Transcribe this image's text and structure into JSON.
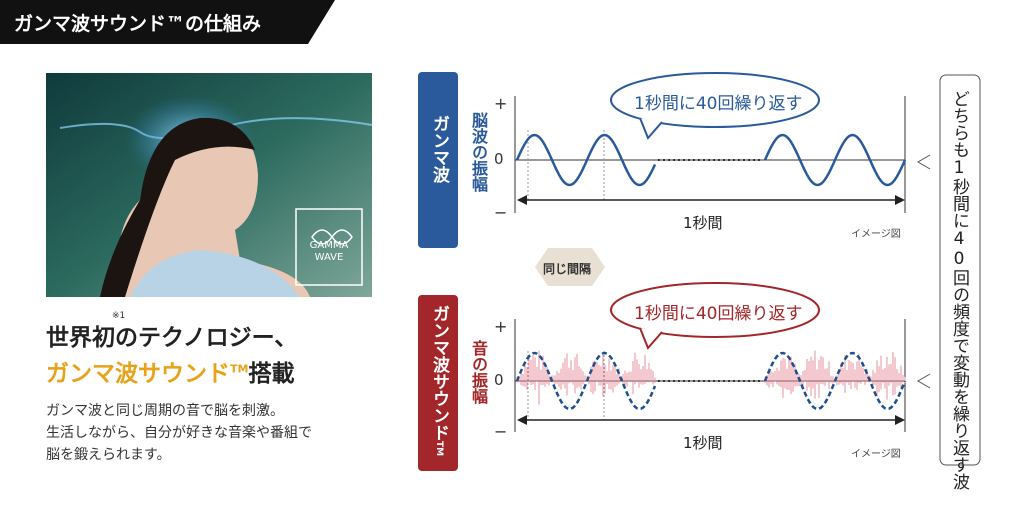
{
  "header": {
    "title": "ガンマ波サウンド™の仕組み"
  },
  "photo": {
    "badge": [
      "GAMMA",
      "WAVE"
    ]
  },
  "left": {
    "note": "※1",
    "heading_line1": "世界初のテクノロジー、",
    "heading_line2": [
      "ガンマ波サウンド",
      "TM",
      "搭載"
    ],
    "body": [
      "ガンマ波と同じ周期の音で脳を刺激。",
      "生活しながら、自分が好きな音楽や番組で",
      "脳を鍛えられます。"
    ]
  },
  "brain_panel": {
    "label": "ガンマ波",
    "axis_title": "脳波の振幅",
    "axis": [
      "+",
      "0",
      "−"
    ],
    "bubble": "1秒間に40回繰り返す",
    "span": "1秒間",
    "note": "イメージ図"
  },
  "interval": "同じ間隔",
  "sound_panel": {
    "label": [
      "ガンマ波サウンド",
      "TM"
    ],
    "axis_title": "音の振幅",
    "axis": [
      "+",
      "0",
      "−"
    ],
    "bubble": "1秒間に40回繰り返す",
    "span": "1秒間",
    "note": "イメージ図"
  },
  "side_note": "どちらも1秒間に40回の頻度で変動を繰り返す波"
}
